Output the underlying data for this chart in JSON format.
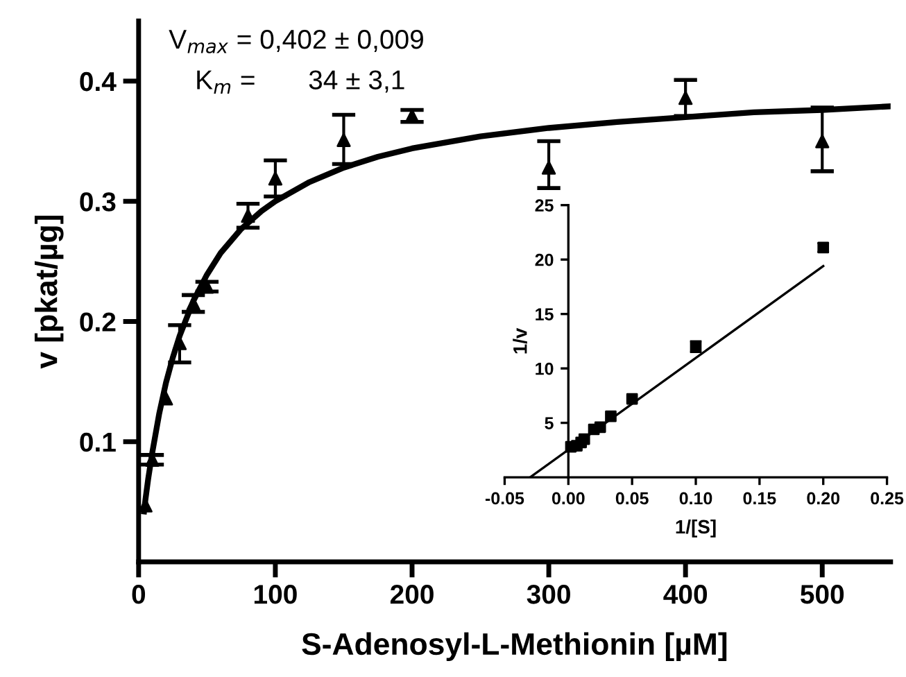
{
  "chart_data": [
    {
      "type": "scatter",
      "xlabel": "S-Adenosyl-L-Methionin [µM]",
      "ylabel": "v [pkat/µg]",
      "xlim": [
        0,
        550
      ],
      "xticks": [
        0,
        100,
        200,
        300,
        400,
        500
      ],
      "ylim": [
        0,
        0.45
      ],
      "yticks": [
        0.1,
        0.2,
        0.3,
        0.4
      ],
      "grid": false,
      "legend": false,
      "annotations": [
        "V$_{max}$ = 0,402 ± 0,009",
        "K$_{m}$ =       34 ± 3,1"
      ],
      "series": [
        {
          "color": "#000000",
          "marker": "triangle",
          "x": [
            5,
            10,
            20,
            30,
            40,
            50,
            80,
            100,
            150,
            200,
            300,
            400,
            500
          ],
          "values": [
            0.047,
            0.085,
            0.136,
            0.182,
            0.215,
            0.229,
            0.288,
            0.319,
            0.351,
            0.371,
            0.328,
            0.386,
            0.35
          ],
          "errors": [
            null,
            0.004,
            null,
            [
              0.166,
              0.197
            ],
            0.007,
            0.004,
            [
              0.278,
              0.298
            ],
            [
              0.304,
              0.334
            ],
            [
              0.331,
              0.372
            ],
            0.005,
            [
              0.311,
              0.35
            ],
            [
              0.371,
              0.401
            ],
            [
              0.325,
              0.378
            ]
          ]
        },
        {
          "type": "line",
          "color": "#000000",
          "marker": "none",
          "line_style": "solid",
          "x": [
            4,
            5,
            7,
            10,
            15,
            20,
            25,
            30,
            40,
            50,
            60,
            75,
            90,
            100,
            125,
            150,
            175,
            200,
            250,
            300,
            350,
            400,
            450,
            500,
            550
          ],
          "values": [
            0.042,
            0.052,
            0.069,
            0.091,
            0.123,
            0.149,
            0.17,
            0.188,
            0.217,
            0.239,
            0.257,
            0.277,
            0.292,
            0.3,
            0.316,
            0.328,
            0.337,
            0.344,
            0.354,
            0.361,
            0.366,
            0.37,
            0.374,
            0.376,
            0.379
          ]
        }
      ]
    },
    {
      "type": "scatter",
      "xlabel": "1/[S]",
      "ylabel": "1/v",
      "xlim": [
        -0.05,
        0.25
      ],
      "xticks": [
        {
          "value": -0.05,
          "label": "-0.05"
        },
        {
          "value": 0,
          "label": "0.00"
        },
        {
          "value": 0.05,
          "label": "0.05"
        },
        {
          "value": 0.1,
          "label": "0.10"
        },
        {
          "value": 0.15,
          "label": "0.15"
        },
        {
          "value": 0.2,
          "label": "0.20"
        },
        {
          "value": 0.25,
          "label": "0.25"
        }
      ],
      "ylim": [
        0,
        25
      ],
      "yticks": [
        5,
        10,
        15,
        20,
        25
      ],
      "grid": false,
      "legend": false,
      "series": [
        {
          "color": "#000000",
          "marker": "square",
          "x": [
            0.2,
            0.1,
            0.05,
            0.0333,
            0.025,
            0.02,
            0.0125,
            0.01,
            0.00667,
            0.002
          ],
          "values": [
            21.1,
            12.0,
            7.2,
            5.6,
            4.6,
            4.4,
            3.5,
            3.2,
            2.9,
            2.8
          ],
          "errors": [
            0.4,
            0.5,
            null,
            null,
            null,
            null,
            null,
            null,
            null,
            null
          ]
        },
        {
          "type": "line",
          "color": "#000000",
          "marker": "none",
          "line_style": "solid",
          "x": [
            -0.03,
            0.2
          ],
          "values": [
            0,
            19.4
          ]
        }
      ]
    }
  ]
}
